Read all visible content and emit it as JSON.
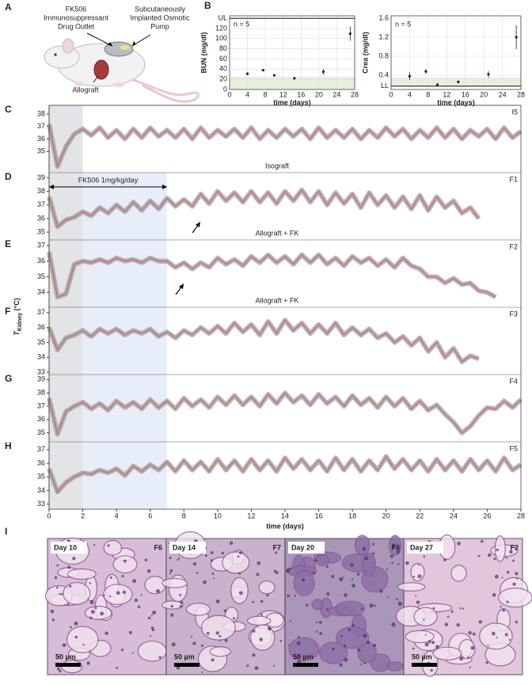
{
  "illustration": {
    "letter": "A",
    "drug_outlet_label": [
      "FK506",
      "Immunosuppressant",
      "Drug Outlet"
    ],
    "pump_label": [
      "Subcutaneously",
      "Implanted Osmotic",
      "Pump"
    ],
    "allograft_label": "Allograft"
  },
  "chart_data": [
    {
      "type": "scatter",
      "letter": "B",
      "y_label": "BUN (mg/dl)",
      "x_label": "time (days)",
      "annotation": "n = 5",
      "x": [
        4,
        7.5,
        10,
        14.5,
        21,
        27
      ],
      "values": [
        31,
        38,
        28,
        22,
        35,
        110
      ],
      "errors": [
        3,
        2,
        2,
        2,
        6,
        14
      ],
      "color": "#222222",
      "normal_range": [
        0,
        25
      ],
      "grid": true,
      "xlim": [
        0,
        28
      ],
      "xticks": [
        0,
        4,
        8,
        12,
        16,
        20,
        24,
        28
      ],
      "ylim": [
        0,
        145
      ],
      "yticks": [
        0,
        20,
        40,
        60,
        80,
        100,
        120,
        {
          "value": 140,
          "label": "UL"
        }
      ]
    },
    {
      "type": "scatter",
      "y_label": "Crea (mg/dl)",
      "x_label": "time (days)",
      "annotation": "n = 5",
      "x": [
        4,
        7.5,
        10,
        14.5,
        21,
        27
      ],
      "values": [
        0.38,
        0.48,
        0.2,
        0.26,
        0.42,
        1.2
      ],
      "errors": [
        0.08,
        0.05,
        0.03,
        0.03,
        0.07,
        0.25
      ],
      "color": "#222222",
      "normal_range": [
        0.17,
        0.35
      ],
      "grid": true,
      "xlim": [
        0,
        28
      ],
      "xticks": [
        0,
        4,
        8,
        12,
        16,
        20,
        24,
        28
      ],
      "ylim": [
        0.1,
        1.65
      ],
      "yticks": [
        {
          "value": 0.17,
          "label": "LL"
        },
        0.4,
        0.8,
        1.2,
        1.6
      ]
    },
    {
      "type": "line",
      "x_label": "time (days)",
      "y_label": {
        "main": "T",
        "sub": "Kidney",
        "unit": " (°C)"
      },
      "xlim": [
        0,
        28
      ],
      "xticks": [
        0,
        2,
        4,
        6,
        8,
        10,
        12,
        14,
        16,
        18,
        20,
        22,
        24,
        26,
        28
      ],
      "shaded_days": [
        0,
        2
      ],
      "fk506": {
        "label": "FK506 1mg/kg/day",
        "days": [
          0,
          7
        ]
      },
      "x": [
        0,
        0.5,
        1,
        1.5,
        2,
        2.5,
        3,
        3.5,
        4,
        4.5,
        5,
        5.5,
        6,
        6.5,
        7,
        7.5,
        8,
        8.5,
        9,
        9.5,
        10,
        10.5,
        11,
        11.5,
        12,
        12.5,
        13,
        13.5,
        14,
        14.5,
        15,
        15.5,
        16,
        16.5,
        17,
        17.5,
        18,
        18.5,
        19,
        19.5,
        20,
        20.5,
        21,
        21.5,
        22,
        22.5,
        23,
        23.5,
        24,
        24.5,
        25,
        25.5,
        26,
        26.5,
        27,
        27.5,
        28
      ],
      "panels": [
        {
          "letter": "C",
          "id": "I5",
          "annotation": "Isograft",
          "ylim": [
            33.5,
            38.5
          ],
          "yticks": [
            35,
            36,
            37,
            38
          ],
          "series": [
            {
              "color": "#d2626b",
              "values": [
                37.2,
                33.8,
                35.4,
                36.4,
                36.8,
                36.3,
                36.9,
                36.1,
                36.7,
                36.0,
                36.8,
                36.1,
                36.9,
                36.2,
                36.7,
                36.1,
                36.8,
                36.0,
                36.9,
                36.1,
                36.7,
                36.2,
                36.8,
                36.1,
                36.9,
                36.0,
                36.7,
                36.1,
                36.8,
                36.2,
                36.8,
                36.0,
                36.9,
                36.1,
                36.7,
                36.1,
                36.8,
                36.0,
                36.7,
                36.1,
                36.9,
                36.2,
                36.8,
                36.0,
                36.7,
                36.1,
                36.9,
                36.1,
                36.8,
                36.0,
                36.7,
                36.2,
                36.8,
                36.0,
                36.9,
                36.1,
                36.6
              ]
            }
          ]
        },
        {
          "letter": "D",
          "id": "F1",
          "annotation": "Allograft + FK",
          "ylim": [
            34.6,
            39.2
          ],
          "yticks": [
            35,
            36,
            37,
            38,
            39
          ],
          "series": [
            {
              "color": "#d2626b",
              "values": [
                37.6,
                35.4,
                35.9,
                36.1,
                36.5,
                36.2,
                36.8,
                36.4,
                37.0,
                36.5,
                37.2,
                36.6,
                37.3,
                36.7,
                37.5,
                36.9,
                37.4,
                36.9,
                37.8,
                37.1,
                38.0,
                37.3,
                37.9,
                37.2,
                38.0,
                37.2,
                37.9,
                37.1,
                38.0,
                37.3,
                38.1,
                37.2,
                38.0,
                37.0,
                37.9,
                37.1,
                37.8,
                36.8,
                37.9,
                37.0,
                37.7,
                36.8,
                37.6,
                36.7,
                37.7,
                36.6,
                37.6,
                36.8,
                37.3,
                36.4,
                36.8,
                36.0,
                null,
                null,
                null,
                null,
                null
              ]
            }
          ]
        },
        {
          "letter": "E",
          "id": "F2",
          "annotation": "Allograft + FK",
          "ylim": [
            33.2,
            37.2
          ],
          "yticks": [
            34,
            35,
            36,
            37
          ],
          "series": [
            {
              "color": "#d2626b",
              "values": [
                36.6,
                33.7,
                33.9,
                35.8,
                36.0,
                35.9,
                36.1,
                35.9,
                36.2,
                36.0,
                36.1,
                35.9,
                36.2,
                36.0,
                36.0,
                35.6,
                35.9,
                35.5,
                35.9,
                35.6,
                36.2,
                35.8,
                36.1,
                35.7,
                36.3,
                35.9,
                36.4,
                35.9,
                36.3,
                35.8,
                36.4,
                35.9,
                36.4,
                35.8,
                36.2,
                35.7,
                36.3,
                35.9,
                36.2,
                35.7,
                36.1,
                35.6,
                36.2,
                35.7,
                35.5,
                35.0,
                35.0,
                34.6,
                34.9,
                34.5,
                34.6,
                34.1,
                34.0,
                33.7,
                null,
                null,
                null
              ]
            }
          ]
        },
        {
          "letter": "F",
          "id": "F3",
          "ylim": [
            33,
            37.2
          ],
          "yticks": [
            33,
            34,
            35,
            36,
            37
          ],
          "series": [
            {
              "color": "#d2626b",
              "values": [
                36.0,
                34.5,
                35.3,
                35.5,
                35.8,
                35.4,
                35.9,
                35.6,
                35.9,
                35.5,
                35.8,
                35.6,
                35.9,
                35.4,
                35.7,
                35.3,
                35.8,
                35.5,
                36.0,
                35.6,
                36.1,
                35.6,
                36.3,
                35.7,
                36.2,
                35.5,
                36.4,
                35.6,
                36.5,
                35.8,
                36.3,
                35.6,
                36.2,
                35.6,
                36.3,
                35.5,
                36.0,
                35.5,
                35.9,
                35.3,
                35.6,
                35.0,
                35.4,
                34.8,
                35.3,
                34.4,
                35.0,
                34.0,
                34.6,
                33.7,
                34.1,
                33.9,
                null,
                null,
                null,
                null,
                null
              ]
            }
          ]
        },
        {
          "letter": "G",
          "id": "F4",
          "ylim": [
            34.5,
            39.2
          ],
          "yticks": [
            35,
            36,
            37,
            38,
            39
          ],
          "series": [
            {
              "color": "#d2626b",
              "values": [
                37.6,
                34.9,
                36.6,
                37.0,
                37.3,
                36.8,
                37.2,
                36.7,
                37.4,
                36.9,
                37.3,
                36.8,
                37.5,
                36.9,
                37.4,
                36.8,
                37.6,
                37.0,
                37.5,
                36.9,
                37.7,
                37.1,
                37.8,
                37.1,
                37.7,
                37.0,
                37.9,
                37.2,
                38.0,
                37.3,
                37.8,
                37.1,
                37.9,
                37.2,
                37.7,
                37.0,
                37.8,
                37.1,
                37.6,
                36.9,
                37.7,
                37.0,
                37.6,
                36.8,
                37.4,
                36.7,
                37.1,
                36.4,
                35.8,
                35.0,
                35.5,
                36.3,
                36.9,
                36.8,
                37.4,
                36.9,
                37.5
              ]
            }
          ]
        },
        {
          "letter": "H",
          "id": "F5",
          "ylim": [
            32.8,
            37.4
          ],
          "yticks": [
            33,
            34,
            35,
            36,
            37
          ],
          "series": [
            {
              "color": "#d2626b",
              "values": [
                35.6,
                33.9,
                34.6,
                35.0,
                35.3,
                35.2,
                35.5,
                35.3,
                35.6,
                35.1,
                35.8,
                35.4,
                35.9,
                35.5,
                36.1,
                35.4,
                36.2,
                35.5,
                36.1,
                35.4,
                36.3,
                35.5,
                36.2,
                35.4,
                36.3,
                35.5,
                36.2,
                35.4,
                36.4,
                35.6,
                36.3,
                35.5,
                36.2,
                35.4,
                36.4,
                35.5,
                36.3,
                35.4,
                36.2,
                35.5,
                36.5,
                35.6,
                36.3,
                35.5,
                36.2,
                35.4,
                36.3,
                35.5,
                36.2,
                35.4,
                36.3,
                35.5,
                36.2,
                35.4,
                36.4,
                35.5,
                35.9
              ]
            }
          ]
        }
      ]
    }
  ],
  "histology": {
    "letter": "I",
    "tiles": [
      {
        "day": "Day 10",
        "id": "F6",
        "scale": "50 µm"
      },
      {
        "day": "Day 14",
        "id": "F7",
        "scale": "50 µm"
      },
      {
        "day": "Day 20",
        "id": "F8",
        "scale": "50 µm"
      },
      {
        "day": "Day 27",
        "id": "F2",
        "scale": "50 µm"
      }
    ]
  }
}
